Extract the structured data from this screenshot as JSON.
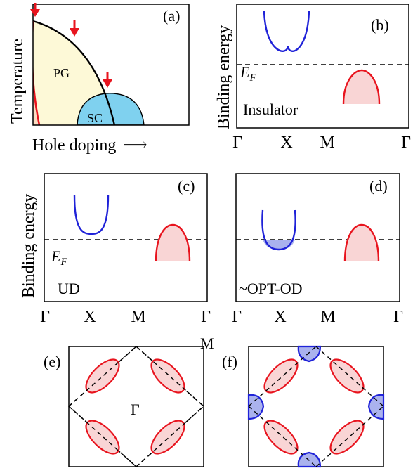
{
  "panel_a": {
    "label": "(a)",
    "pg": "PG",
    "sc": "SC",
    "ylabel": "Temperature",
    "xlabel": "Hole doping",
    "arrow_glyph": "⟶"
  },
  "panel_b": {
    "label": "(b)",
    "ylabel": "Binding energy",
    "ef": "E",
    "ef_sub": "F",
    "caption": "Insulator",
    "ticks": [
      "Γ",
      "X",
      "M",
      "Γ"
    ]
  },
  "panel_c": {
    "label": "(c)",
    "ylabel": "Binding energy",
    "ef": "E",
    "ef_sub": "F",
    "caption": "UD",
    "ticks": [
      "Γ",
      "X",
      "M",
      "Γ"
    ]
  },
  "panel_d": {
    "label": "(d)",
    "caption": "~OPT-OD",
    "ticks": [
      "Γ",
      "X",
      "M",
      "Γ"
    ]
  },
  "panel_e": {
    "label": "(e)",
    "gamma": "Γ",
    "corner": "M"
  },
  "panel_f": {
    "label": "(f)"
  },
  "colors": {
    "red": "#e8141e",
    "blue": "#1f22d8",
    "pink_fill": "#f9d5d5",
    "blue_fill": "#aab2ee",
    "pg_fill": "#fdf9d7",
    "sc_fill": "#7fd1ef",
    "orange_fill": "#fcdcc1"
  }
}
